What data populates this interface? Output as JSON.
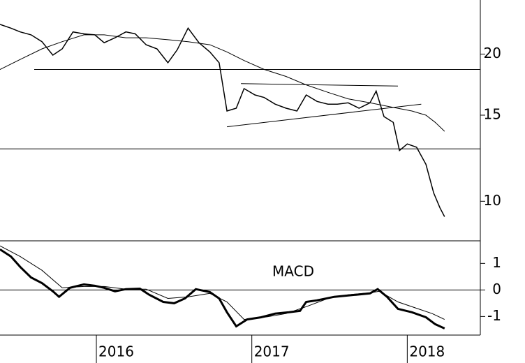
{
  "chart_data": [
    {
      "type": "line",
      "log_scale": true,
      "color": "#000000",
      "xlim": [
        2015.38,
        2018.47
      ],
      "ylim": [
        8.3,
        25.8
      ],
      "yticks": [
        10,
        15,
        20
      ],
      "series": [
        {
          "x": [
            2015.38,
            2015.45,
            2015.51,
            2015.58,
            2015.65,
            2015.72,
            2015.78,
            2015.85,
            2015.92,
            2015.99,
            2016.05,
            2016.12,
            2016.19,
            2016.25,
            2016.32,
            2016.39,
            2016.46,
            2016.52,
            2016.59,
            2016.66,
            2016.73,
            2016.79,
            2016.84,
            2016.9,
            2016.95,
            2017.02,
            2017.08,
            2017.15,
            2017.22,
            2017.29,
            2017.35,
            2017.42,
            2017.49,
            2017.55,
            2017.62,
            2017.69,
            2017.76,
            2017.8,
            2017.85,
            2017.91,
            2017.95,
            2018.0,
            2018.06,
            2018.12,
            2018.17,
            2018.21,
            2018.24
          ],
          "values": [
            23.0,
            22.6,
            22.2,
            21.9,
            21.2,
            19.9,
            20.5,
            22.2,
            22.0,
            21.9,
            21.1,
            21.6,
            22.2,
            22.0,
            20.9,
            20.5,
            19.2,
            20.4,
            22.6,
            21.1,
            20.2,
            19.2,
            15.3,
            15.5,
            17.0,
            16.5,
            16.3,
            15.8,
            15.5,
            15.3,
            16.5,
            16.0,
            15.8,
            15.8,
            15.9,
            15.5,
            15.9,
            16.8,
            14.9,
            14.5,
            12.7,
            13.1,
            12.9,
            11.9,
            10.4,
            9.7,
            9.3
          ],
          "width": 1.5
        },
        {
          "x": [
            2015.38,
            2015.51,
            2015.65,
            2015.78,
            2015.92,
            2016.05,
            2016.19,
            2016.32,
            2016.46,
            2016.59,
            2016.73,
            2016.84,
            2016.95,
            2017.08,
            2017.22,
            2017.35,
            2017.49,
            2017.62,
            2017.76,
            2017.89,
            2018.03,
            2018.12,
            2018.18,
            2018.24
          ],
          "values": [
            18.6,
            19.5,
            20.5,
            21.2,
            21.9,
            21.9,
            21.6,
            21.6,
            21.4,
            21.2,
            20.9,
            20.2,
            19.4,
            18.6,
            18.0,
            17.3,
            16.7,
            16.2,
            15.9,
            15.6,
            15.3,
            15.0,
            14.5,
            13.9
          ],
          "width": 1
        }
      ],
      "reference_lines": [
        {
          "x": [
            2015.6,
            2018.47
          ],
          "values": [
            18.6,
            18.6
          ]
        },
        {
          "x": [
            2015.38,
            2018.47
          ],
          "values": [
            12.8,
            12.8
          ]
        },
        {
          "x": [
            2016.93,
            2017.94
          ],
          "values": [
            17.4,
            17.2
          ]
        },
        {
          "x": [
            2016.84,
            2018.09
          ],
          "values": [
            14.2,
            15.8
          ]
        }
      ]
    },
    {
      "type": "line",
      "color": "#000000",
      "annotation": "MACD",
      "zero_line": true,
      "xlim": [
        2015.38,
        2018.47
      ],
      "ylim": [
        -1.7,
        1.85
      ],
      "yticks": [
        -1,
        0,
        1
      ],
      "xticks": [
        2016,
        2017,
        2018
      ],
      "series": [
        {
          "x": [
            2015.38,
            2015.45,
            2015.51,
            2015.58,
            2015.65,
            2015.72,
            2015.76,
            2015.83,
            2015.92,
            2015.99,
            2016.05,
            2016.12,
            2016.19,
            2016.28,
            2016.34,
            2016.43,
            2016.5,
            2016.57,
            2016.64,
            2016.73,
            2016.79,
            2016.84,
            2016.9,
            2016.97,
            2017.06,
            2017.15,
            2017.24,
            2017.31,
            2017.35,
            2017.42,
            2017.53,
            2017.67,
            2017.76,
            2017.81,
            2017.87,
            2017.94,
            2018.03,
            2018.12,
            2018.18,
            2018.24
          ],
          "values": [
            1.53,
            1.26,
            0.87,
            0.47,
            0.26,
            -0.05,
            -0.26,
            0.08,
            0.21,
            0.16,
            0.08,
            -0.05,
            0.03,
            0.05,
            -0.18,
            -0.45,
            -0.5,
            -0.32,
            0.03,
            -0.08,
            -0.32,
            -0.84,
            -1.37,
            -1.11,
            -1.03,
            -0.89,
            -0.84,
            -0.79,
            -0.45,
            -0.39,
            -0.26,
            -0.18,
            -0.13,
            0.03,
            -0.26,
            -0.71,
            -0.84,
            -1.03,
            -1.29,
            -1.45
          ],
          "width": 3
        },
        {
          "x": [
            2015.38,
            2015.51,
            2015.65,
            2015.78,
            2015.92,
            2016.05,
            2016.19,
            2016.32,
            2016.46,
            2016.59,
            2016.73,
            2016.84,
            2016.95,
            2017.08,
            2017.22,
            2017.35,
            2017.49,
            2017.62,
            2017.76,
            2017.82,
            2017.94,
            2018.07,
            2018.16,
            2018.24
          ],
          "values": [
            1.66,
            1.26,
            0.74,
            0.08,
            0.13,
            0.13,
            0.03,
            0.03,
            -0.32,
            -0.26,
            -0.13,
            -0.45,
            -1.11,
            -1.03,
            -0.89,
            -0.63,
            -0.32,
            -0.18,
            -0.11,
            -0.05,
            -0.45,
            -0.71,
            -0.89,
            -1.11
          ],
          "width": 1
        }
      ]
    }
  ]
}
